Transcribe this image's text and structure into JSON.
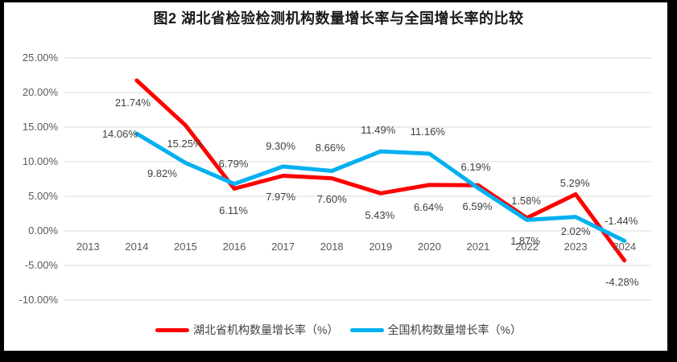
{
  "chart_data": {
    "type": "line",
    "title": "图2 湖北省检验检测机构数量增长率与全国增长率的比较",
    "categories": [
      "2013",
      "2014",
      "2015",
      "2016",
      "2017",
      "2018",
      "2019",
      "2020",
      "2021",
      "2022",
      "2023",
      "2024"
    ],
    "series": [
      {
        "name": "湖北省机构数量增长率（%）",
        "key": "hubei",
        "color": "#FF0000",
        "values": [
          null,
          21.74,
          15.25,
          6.11,
          7.97,
          7.6,
          5.43,
          6.64,
          6.59,
          1.87,
          5.29,
          -4.28
        ],
        "labels": [
          "",
          "21.74%",
          "15.25%",
          "6.11%",
          "7.97%",
          "7.60%",
          "5.43%",
          "6.64%",
          "6.59%",
          "1.87%",
          "5.29%",
          "-4.28%"
        ]
      },
      {
        "name": "全国机构数量增长率（%）",
        "key": "national",
        "color": "#00B0F0",
        "values": [
          null,
          14.06,
          9.82,
          6.79,
          9.3,
          8.66,
          11.49,
          11.16,
          6.19,
          1.58,
          2.02,
          -1.44
        ],
        "labels": [
          "",
          "14.06%",
          "9.82%",
          "6.79%",
          "9.30%",
          "8.66%",
          "11.49%",
          "11.16%",
          "6.19%",
          "1.58%",
          "2.02%",
          "-1.44%"
        ]
      }
    ],
    "y_ticks": [
      {
        "value": 25,
        "label": "25.00%"
      },
      {
        "value": 20,
        "label": "20.00%"
      },
      {
        "value": 15,
        "label": "15.00%"
      },
      {
        "value": 10,
        "label": "10.00%"
      },
      {
        "value": 5,
        "label": "5.00%"
      },
      {
        "value": 0,
        "label": "0.00%"
      },
      {
        "value": -5,
        "label": "-5.00%"
      },
      {
        "value": -10,
        "label": "-10.00%"
      }
    ],
    "ylim": [
      -10,
      25
    ],
    "grid": true,
    "legend_position": "bottom"
  },
  "colors": {
    "gridline": "#D9D9D9",
    "axis_text": "#595959",
    "data_label_text": "#3F3F3F",
    "title_text": "#1A1A1A",
    "frame": "#000000",
    "background": "#FFFFFF"
  }
}
